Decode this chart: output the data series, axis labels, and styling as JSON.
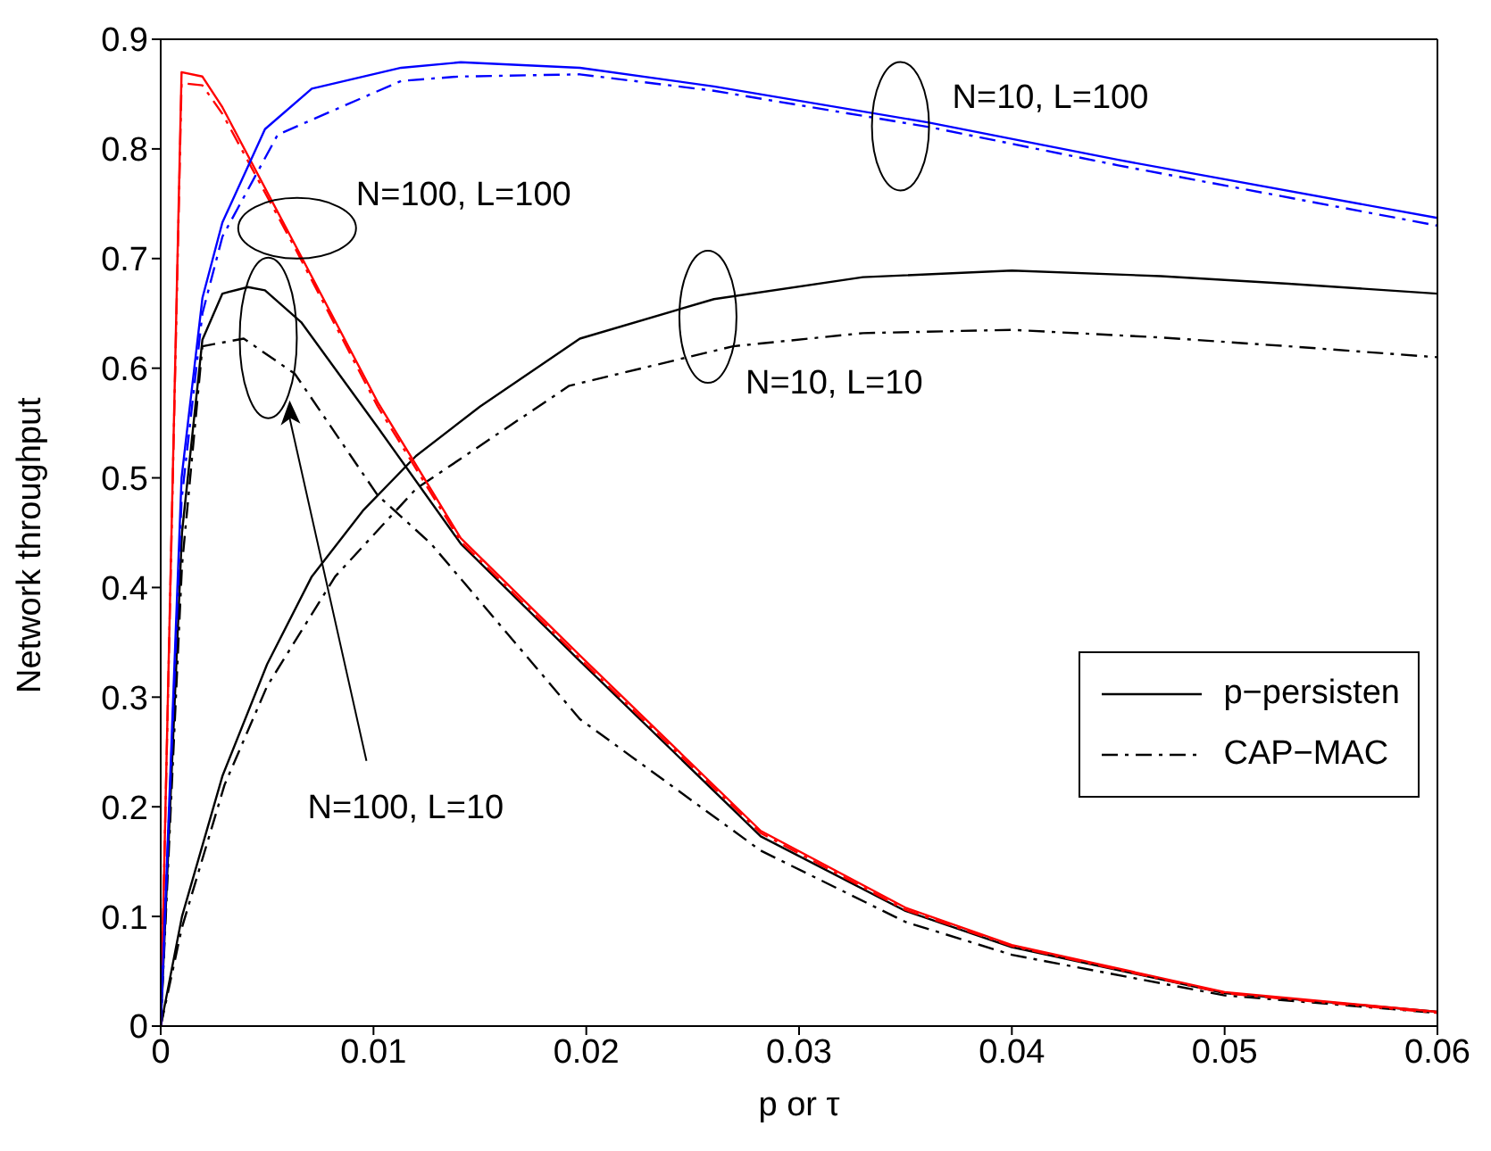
{
  "chart_data": {
    "type": "line",
    "xlabel": "p or τ",
    "ylabel": "Network throughput",
    "xlim": [
      0,
      0.06
    ],
    "ylim": [
      0,
      0.9
    ],
    "xticks": [
      0,
      0.01,
      0.02,
      0.03,
      0.04,
      0.05,
      0.06
    ],
    "yticks": [
      0,
      0.1,
      0.2,
      0.3,
      0.4,
      0.5,
      0.6,
      0.7,
      0.8,
      0.9
    ],
    "legend": "bottom right",
    "grid": false,
    "series": [
      {
        "name": "p−persisten",
        "color": "#000000",
        "line_style": "solid",
        "x": [
          0,
          0.001,
          0.0029,
          0.005,
          0.0071,
          0.0095,
          0.012,
          0.015,
          0.0197,
          0.026,
          0.033,
          0.04,
          0.047,
          0.053,
          0.06
        ],
        "values": [
          0,
          0.1,
          0.228,
          0.33,
          0.41,
          0.47,
          0.52,
          0.565,
          0.627,
          0.663,
          0.683,
          0.689,
          0.684,
          0.677,
          0.668
        ]
      },
      {
        "name": "CAP−MAC",
        "color": "#000000",
        "line_style": "dashed",
        "x": [
          0,
          0.001,
          0.003,
          0.005,
          0.0082,
          0.012,
          0.0192,
          0.0269,
          0.033,
          0.04,
          0.047,
          0.053,
          0.06
        ],
        "values": [
          0,
          0.09,
          0.22,
          0.31,
          0.41,
          0.49,
          0.584,
          0.62,
          0.632,
          0.635,
          0.628,
          0.62,
          0.61
        ]
      },
      {
        "color": "#000000",
        "line_style": "solid",
        "x": [
          0,
          0.001,
          0.00196,
          0.0029,
          0.0041,
          0.0049,
          0.0066,
          0.0102,
          0.0141,
          0.0197,
          0.0282,
          0.035,
          0.04,
          0.05,
          0.06
        ],
        "values": [
          0,
          0.45,
          0.626,
          0.668,
          0.674,
          0.671,
          0.642,
          0.546,
          0.44,
          0.333,
          0.173,
          0.105,
          0.072,
          0.03,
          0.013
        ]
      },
      {
        "color": "#000000",
        "line_style": "dashed",
        "x": [
          0,
          0.001,
          0.00196,
          0.0039,
          0.0063,
          0.0102,
          0.0127,
          0.0197,
          0.0282,
          0.035,
          0.04,
          0.05,
          0.06
        ],
        "values": [
          0,
          0.42,
          0.62,
          0.627,
          0.595,
          0.484,
          0.44,
          0.28,
          0.16,
          0.095,
          0.065,
          0.028,
          0.012
        ]
      },
      {
        "color": "#ff0000",
        "line_style": "solid",
        "x": [
          0,
          0.00098,
          0.00196,
          0.0029,
          0.0063,
          0.0102,
          0.0141,
          0.0197,
          0.0282,
          0.035,
          0.04,
          0.05,
          0.06
        ],
        "values": [
          0,
          0.87,
          0.866,
          0.838,
          0.713,
          0.569,
          0.445,
          0.338,
          0.178,
          0.108,
          0.074,
          0.031,
          0.013
        ]
      },
      {
        "color": "#ff0000",
        "line_style": "dashed",
        "x": [
          0,
          0.00098,
          0.00196,
          0.0029,
          0.0063,
          0.0102,
          0.0141,
          0.0197,
          0.0282,
          0.035,
          0.04,
          0.05,
          0.06
        ],
        "values": [
          0,
          0.86,
          0.858,
          0.832,
          0.71,
          0.565,
          0.442,
          0.335,
          0.176,
          0.106,
          0.073,
          0.03,
          0.012
        ]
      },
      {
        "color": "#0000ff",
        "line_style": "solid",
        "x": [
          0,
          0.00098,
          0.00196,
          0.0029,
          0.0049,
          0.0071,
          0.0113,
          0.0141,
          0.0197,
          0.026,
          0.0361,
          0.045,
          0.06
        ],
        "values": [
          0,
          0.5,
          0.664,
          0.733,
          0.818,
          0.855,
          0.874,
          0.879,
          0.874,
          0.857,
          0.824,
          0.79,
          0.737
        ]
      },
      {
        "color": "#0000ff",
        "line_style": "dashed",
        "x": [
          0,
          0.00098,
          0.00196,
          0.0029,
          0.0055,
          0.0113,
          0.014,
          0.0197,
          0.026,
          0.0361,
          0.045,
          0.06
        ],
        "values": [
          0,
          0.48,
          0.65,
          0.72,
          0.813,
          0.862,
          0.866,
          0.868,
          0.853,
          0.82,
          0.785,
          0.73
        ]
      }
    ],
    "annotations": [
      "N=100, L=100",
      "N=10, L=100",
      "N=10, L=10",
      "N=100, L=10"
    ]
  }
}
